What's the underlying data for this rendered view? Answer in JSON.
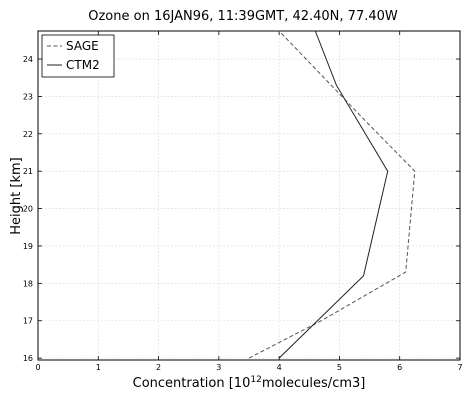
{
  "chart_data": {
    "type": "line",
    "title": "Ozone on 16JAN96, 11:39GMT, 42.40N, 77.40W",
    "xlabel": "Concentration [10",
    "xlabel_sup": "12",
    "xlabel_tail": "molecules/cm3]",
    "ylabel": "Height [km]",
    "xlim": [
      0,
      7
    ],
    "ylim": [
      15.95,
      24.75
    ],
    "x_ticks": [
      "0",
      "1",
      "2",
      "3",
      "4",
      "5",
      "6",
      "7"
    ],
    "y_ticks": [
      "16",
      "17",
      "18",
      "19",
      "20",
      "21",
      "22",
      "23",
      "24"
    ],
    "grid": true,
    "legend_position": "top-left",
    "series": [
      {
        "name": "SAGE",
        "style": "dashed",
        "color": "#555555",
        "points": [
          [
            3.5,
            16.0
          ],
          [
            4.7,
            17.0
          ],
          [
            6.1,
            18.3
          ],
          [
            6.25,
            21.0
          ],
          [
            5.4,
            22.4
          ],
          [
            4.0,
            24.75
          ]
        ]
      },
      {
        "name": "CTM2",
        "style": "solid",
        "color": "#222222",
        "points": [
          [
            4.0,
            16.0
          ],
          [
            5.4,
            18.2
          ],
          [
            5.8,
            21.0
          ],
          [
            4.95,
            23.3
          ],
          [
            4.6,
            24.75
          ]
        ]
      }
    ]
  }
}
